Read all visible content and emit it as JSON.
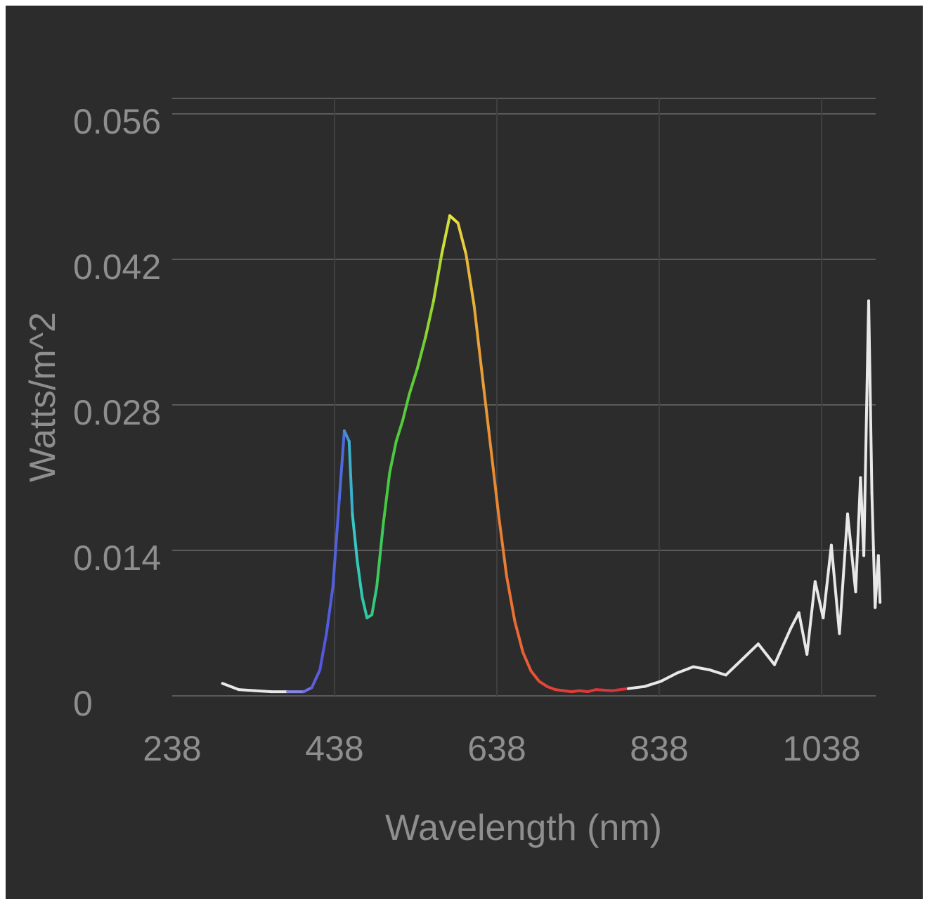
{
  "chart_data": {
    "type": "line",
    "xlabel": "Wavelength (nm)",
    "ylabel": "Watts/m^2",
    "xlim": [
      238,
      1115
    ],
    "ylim": [
      0,
      0.056
    ],
    "x_ticks": [
      "238",
      "438",
      "638",
      "838",
      "1038"
    ],
    "x_tick_values": [
      238,
      438,
      638,
      838,
      1038
    ],
    "y_ticks": [
      "0",
      "0.014",
      "0.028",
      "0.042",
      "0.056"
    ],
    "y_tick_values": [
      0,
      0.014,
      0.028,
      0.042,
      0.056
    ],
    "grid": true,
    "background_color": "#2c2c2c",
    "grid_color": "#5a5a5a",
    "text_color": "#8e8e8e",
    "series": [
      {
        "color_scheme": "visible-spectrum rainbow, white outside visible range",
        "x": [
          300,
          320,
          340,
          360,
          380,
          400,
          410,
          420,
          428,
          436,
          444,
          450,
          456,
          460,
          466,
          472,
          478,
          484,
          490,
          498,
          506,
          514,
          522,
          530,
          540,
          550,
          560,
          570,
          580,
          590,
          600,
          610,
          616,
          622,
          628,
          634,
          640,
          650,
          660,
          670,
          680,
          690,
          700,
          710,
          720,
          730,
          740,
          750,
          760,
          780,
          800,
          820,
          840,
          860,
          880,
          900,
          920,
          940,
          960,
          980,
          1000,
          1010,
          1020,
          1030,
          1040,
          1050,
          1060,
          1070,
          1080,
          1086,
          1090,
          1096,
          1100,
          1104,
          1108,
          1110
        ],
        "y": [
          0.0012,
          0.0006,
          0.0005,
          0.0004,
          0.0004,
          0.0004,
          0.0008,
          0.0025,
          0.006,
          0.0105,
          0.019,
          0.0255,
          0.0245,
          0.0175,
          0.013,
          0.0095,
          0.0075,
          0.0078,
          0.0105,
          0.0165,
          0.0215,
          0.0245,
          0.0265,
          0.029,
          0.0315,
          0.0345,
          0.038,
          0.0425,
          0.0462,
          0.0455,
          0.0425,
          0.0375,
          0.0335,
          0.0295,
          0.0255,
          0.0215,
          0.0175,
          0.0115,
          0.0072,
          0.0042,
          0.0024,
          0.0014,
          0.0009,
          0.0006,
          0.0005,
          0.0004,
          0.0005,
          0.0004,
          0.0006,
          0.0005,
          0.0007,
          0.0009,
          0.0014,
          0.0022,
          0.0028,
          0.0025,
          0.002,
          0.0035,
          0.005,
          0.003,
          0.0065,
          0.008,
          0.004,
          0.011,
          0.0075,
          0.0145,
          0.006,
          0.0175,
          0.01,
          0.021,
          0.0135,
          0.038,
          0.0195,
          0.0085,
          0.0135,
          0.009
        ]
      }
    ]
  }
}
